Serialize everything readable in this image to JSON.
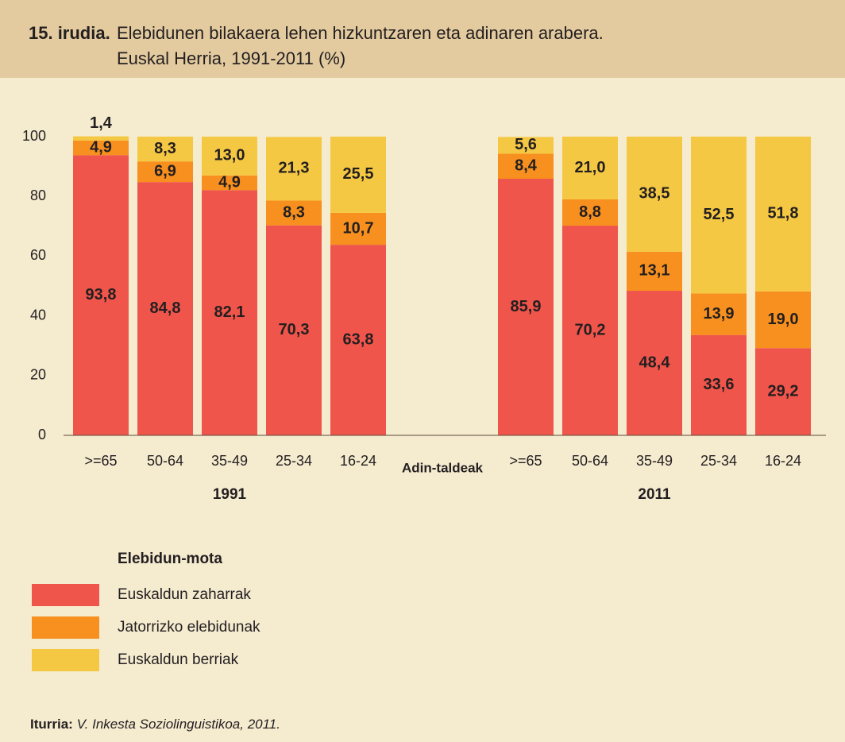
{
  "chart_data": {
    "type": "bar",
    "stacked": true,
    "figure_label": "15. irudia.",
    "title": "Elebidunen bilakaera lehen hizkuntzaren eta adinaren arabera.",
    "subtitle": "Euskal Herria, 1991-2011 (%)",
    "x_label": "Adin-taldeak",
    "groups": [
      "1991",
      "2011"
    ],
    "categories": [
      ">=65",
      "50-64",
      "35-49",
      "25-34",
      "16-24",
      ">=65",
      "50-64",
      "35-49",
      "25-34",
      "16-24"
    ],
    "series": [
      {
        "name": "Euskaldun zaharrak",
        "color": "#f0554b",
        "values": [
          93.8,
          84.8,
          82.1,
          70.3,
          63.8,
          85.9,
          70.2,
          48.4,
          33.6,
          29.2
        ],
        "value_labels": [
          "93,8",
          "84,8",
          "82,1",
          "70,3",
          "63,8",
          "85,9",
          "70,2",
          "48,4",
          "33,6",
          "29,2"
        ]
      },
      {
        "name": "Jatorrizko elebidunak",
        "color": "#f7901e",
        "values": [
          4.9,
          6.9,
          4.9,
          8.3,
          10.7,
          8.4,
          8.8,
          13.1,
          13.9,
          19.0
        ],
        "value_labels": [
          "4,9",
          "6,9",
          "4,9",
          "8,3",
          "10,7",
          "8,4",
          "8,8",
          "13,1",
          "13,9",
          "19,0"
        ]
      },
      {
        "name": "Euskaldun berriak",
        "color": "#f5c843",
        "values": [
          1.4,
          8.3,
          13.0,
          21.3,
          25.5,
          5.6,
          21.0,
          38.5,
          52.5,
          51.8
        ],
        "value_labels": [
          "1,4",
          "8,3",
          "13,0",
          "21,3",
          "25,5",
          "5,6",
          "21,0",
          "38,5",
          "52,5",
          "51,8"
        ]
      }
    ],
    "ylim": [
      0,
      100
    ],
    "yticks": [
      0,
      20,
      40,
      60,
      80,
      100
    ],
    "legend_title": "Elebidun-mota",
    "source_label": "Iturria:",
    "source": "V. Inkesta Soziolinguistikoa, 2011."
  }
}
